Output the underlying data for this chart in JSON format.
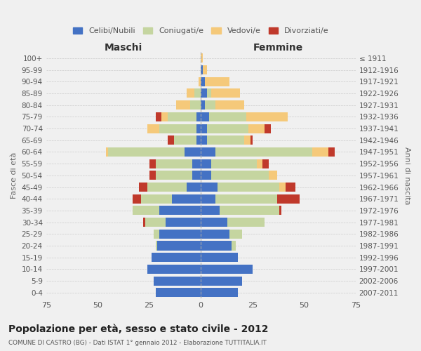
{
  "age_groups": [
    "0-4",
    "5-9",
    "10-14",
    "15-19",
    "20-24",
    "25-29",
    "30-34",
    "35-39",
    "40-44",
    "45-49",
    "50-54",
    "55-59",
    "60-64",
    "65-69",
    "70-74",
    "75-79",
    "80-84",
    "85-89",
    "90-94",
    "95-99",
    "100+"
  ],
  "birth_years": [
    "2007-2011",
    "2002-2006",
    "1997-2001",
    "1992-1996",
    "1987-1991",
    "1982-1986",
    "1977-1981",
    "1972-1976",
    "1967-1971",
    "1962-1966",
    "1957-1961",
    "1952-1956",
    "1947-1951",
    "1942-1946",
    "1937-1941",
    "1932-1936",
    "1927-1931",
    "1922-1926",
    "1917-1921",
    "1912-1916",
    "≤ 1911"
  ],
  "colors": {
    "celibi": "#4472C4",
    "coniugati": "#c5d5a0",
    "vedovi": "#f5c97a",
    "divorziati": "#c0392b"
  },
  "maschi": {
    "celibi": [
      22,
      23,
      26,
      24,
      21,
      20,
      17,
      20,
      14,
      7,
      4,
      4,
      8,
      2,
      2,
      2,
      0,
      0,
      0,
      0,
      0
    ],
    "coniugati": [
      0,
      0,
      0,
      0,
      1,
      3,
      10,
      13,
      15,
      19,
      18,
      18,
      37,
      11,
      18,
      14,
      5,
      3,
      0,
      0,
      0
    ],
    "vedovi": [
      0,
      0,
      0,
      0,
      0,
      0,
      0,
      0,
      0,
      0,
      0,
      0,
      1,
      0,
      6,
      3,
      7,
      4,
      1,
      0,
      0
    ],
    "divorziati": [
      0,
      0,
      0,
      0,
      0,
      0,
      1,
      0,
      4,
      4,
      3,
      3,
      0,
      3,
      0,
      3,
      0,
      0,
      0,
      0,
      0
    ]
  },
  "femmine": {
    "celibi": [
      18,
      20,
      25,
      18,
      15,
      14,
      13,
      9,
      7,
      8,
      5,
      5,
      7,
      3,
      3,
      4,
      2,
      3,
      2,
      1,
      0
    ],
    "coniugati": [
      0,
      0,
      0,
      0,
      2,
      6,
      18,
      29,
      30,
      30,
      28,
      22,
      47,
      18,
      20,
      18,
      5,
      2,
      0,
      0,
      0
    ],
    "vedovi": [
      0,
      0,
      0,
      0,
      0,
      0,
      0,
      0,
      0,
      3,
      4,
      3,
      8,
      3,
      8,
      20,
      14,
      14,
      12,
      2,
      1
    ],
    "divorziati": [
      0,
      0,
      0,
      0,
      0,
      0,
      0,
      1,
      11,
      5,
      0,
      3,
      3,
      1,
      3,
      0,
      0,
      0,
      0,
      0,
      0
    ]
  },
  "xlim": 75,
  "title": "Popolazione per età, sesso e stato civile - 2012",
  "subtitle": "COMUNE DI CASTRO (BG) - Dati ISTAT 1° gennaio 2012 - Elaborazione TUTTITALIA.IT",
  "ylabel_left": "Fasce di età",
  "ylabel_right": "Anni di nascita",
  "xlabel_left": "Maschi",
  "xlabel_right": "Femmine",
  "legend_labels": [
    "Celibi/Nubili",
    "Coniugati/e",
    "Vedovi/e",
    "Divorziati/e"
  ],
  "background_color": "#f0f0f0",
  "grid_color": "#cccccc"
}
